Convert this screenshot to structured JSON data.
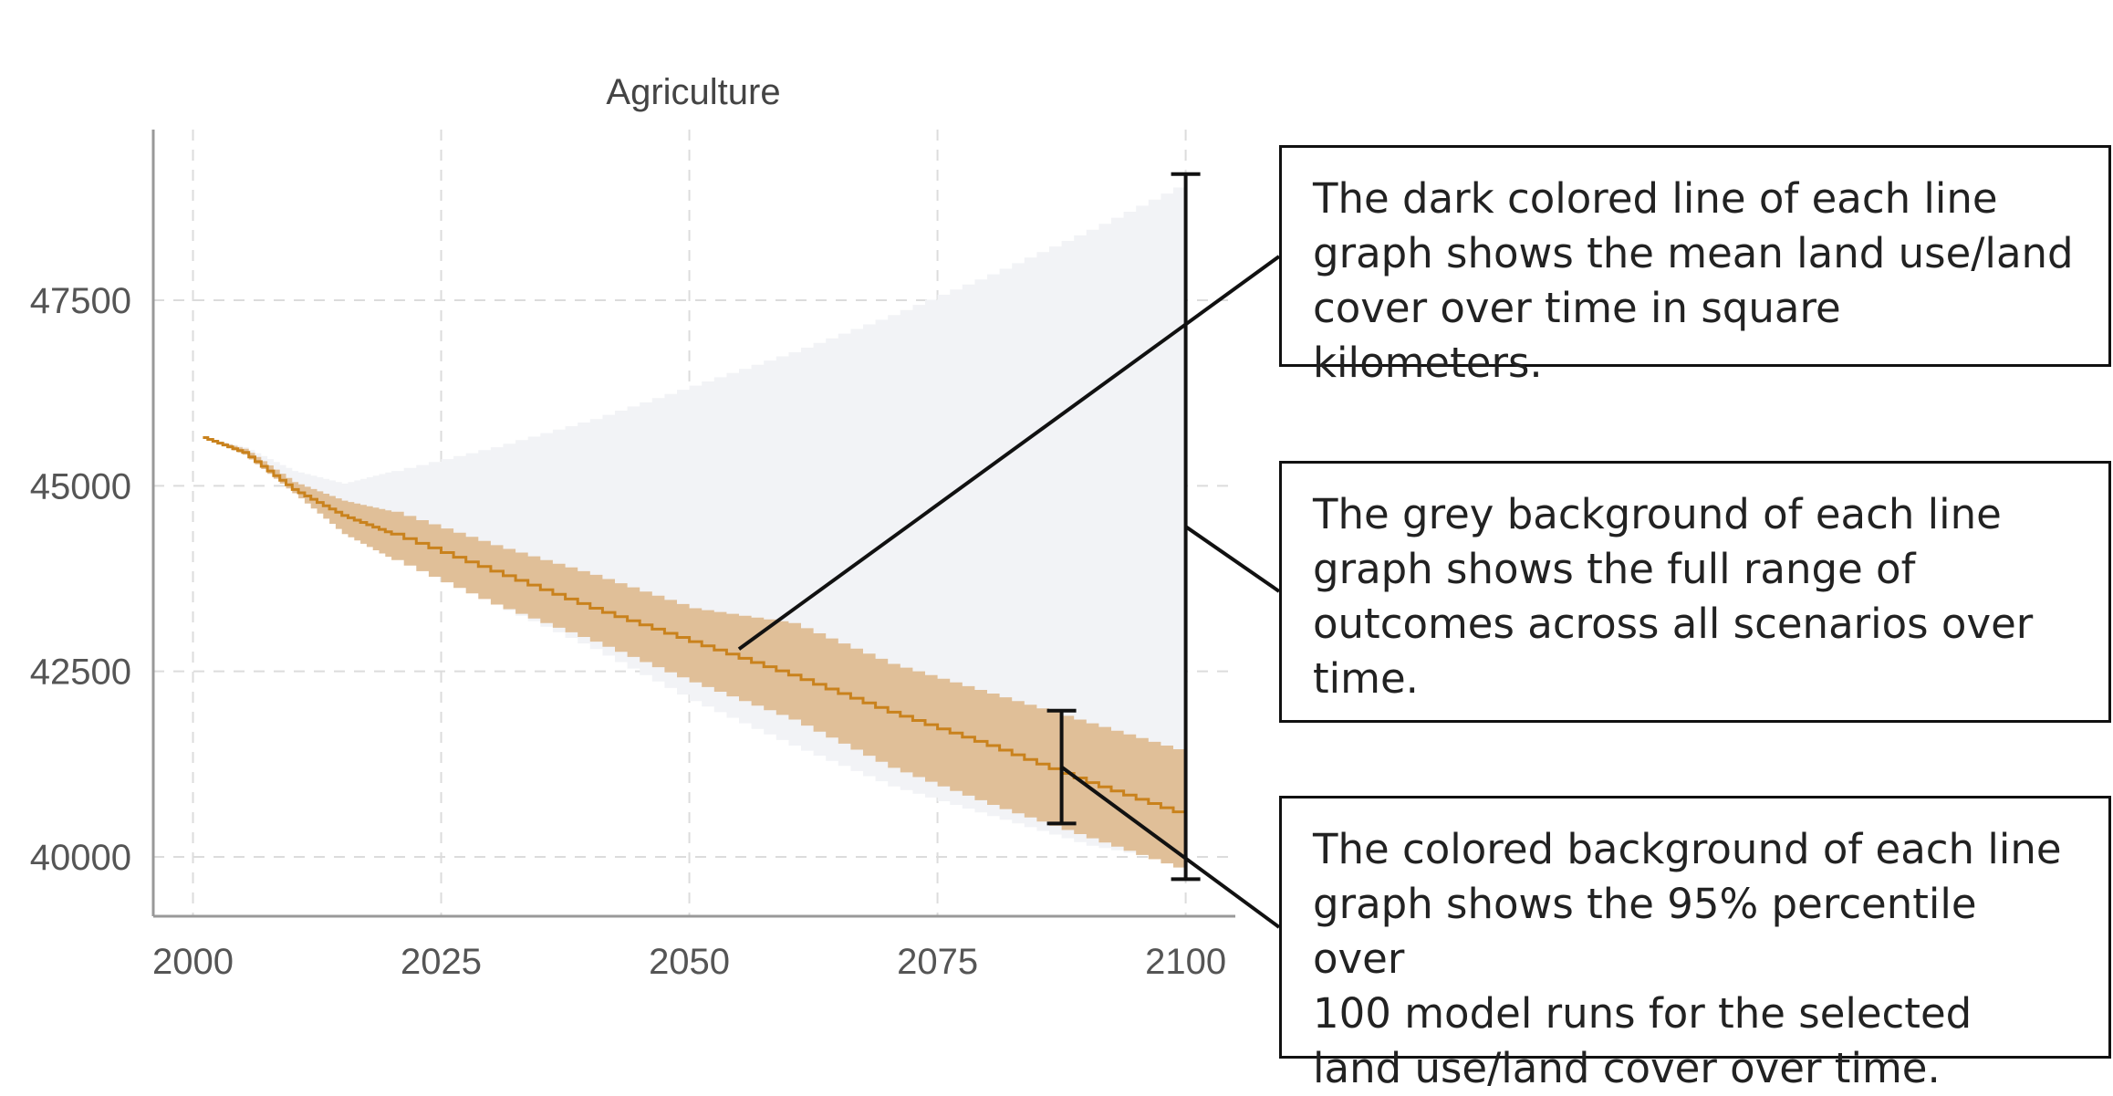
{
  "chart_data": {
    "type": "line",
    "title": "Agriculture",
    "xlabel": "",
    "ylabel": "",
    "xlim": [
      1996,
      2105
    ],
    "ylim": [
      39200,
      49800
    ],
    "x_ticks": [
      2000,
      2025,
      2050,
      2075,
      2100
    ],
    "y_ticks": [
      40000,
      42500,
      45000,
      47500
    ],
    "grid": true,
    "series": [
      {
        "role": "full range",
        "color": "#f2f3f6",
        "x": [
          2001,
          2005,
          2010,
          2015,
          2020,
          2030,
          2040,
          2050,
          2060,
          2070,
          2080,
          2090,
          2100
        ],
        "upper": [
          45650,
          45520,
          45200,
          45030,
          45200,
          45520,
          45900,
          46350,
          46800,
          47300,
          47850,
          48450,
          49100
        ],
        "lower": [
          45650,
          45450,
          44950,
          44450,
          44050,
          43400,
          42800,
          42100,
          41500,
          40950,
          40550,
          40150,
          39900
        ]
      },
      {
        "role": "95% percentile",
        "color": "#e0bf98",
        "x": [
          2001,
          2005,
          2010,
          2015,
          2020,
          2030,
          2040,
          2050,
          2060,
          2070,
          2080,
          2090,
          2100
        ],
        "upper": [
          45650,
          45500,
          45050,
          44800,
          44650,
          44200,
          43800,
          43350,
          43150,
          42600,
          42200,
          41800,
          41400
        ],
        "lower": [
          45650,
          45420,
          44900,
          44350,
          44000,
          43400,
          42900,
          42350,
          41850,
          41200,
          40700,
          40250,
          39800
        ]
      },
      {
        "role": "mean",
        "color": "#c9821d",
        "x": [
          2001,
          2005,
          2010,
          2015,
          2020,
          2030,
          2040,
          2050,
          2060,
          2070,
          2080,
          2090,
          2100
        ],
        "values": [
          45650,
          45450,
          44950,
          44600,
          44350,
          43850,
          43350,
          42900,
          42450,
          41950,
          41500,
          41000,
          40550
        ]
      }
    ],
    "annotations": [
      {
        "id": "mean-line",
        "text": "The dark colored line of each line graph shows the mean land use/land cover over time in square kilometers.",
        "text_lines": [
          "The dark colored line of each line",
          "graph shows the mean land use/land",
          "cover over time in square kilometers."
        ]
      },
      {
        "id": "grey-background",
        "text": "The grey background of each line graph shows the full range of outcomes across all scenarios over time.",
        "text_lines": [
          "The grey background of each line",
          "graph shows the full range of",
          "outcomes across all scenarios over",
          "time."
        ]
      },
      {
        "id": "colored-background",
        "text": "The colored background of each line graph shows the 95% percentile over 100 model runs for the selected land use/land cover over time.",
        "text_lines": [
          "The colored background of each line",
          "graph shows the 95% percentile over",
          "100 model runs for the selected",
          "land use/land cover over time."
        ]
      }
    ],
    "markers": {
      "full_range_bracket": {
        "x": 2100,
        "low": 39700,
        "high": 49200
      },
      "percentile_bracket": {
        "x": 2087.5,
        "low": 40450,
        "high": 41970
      },
      "mean_pointer": {
        "x": 2055,
        "y": 42800
      }
    }
  }
}
